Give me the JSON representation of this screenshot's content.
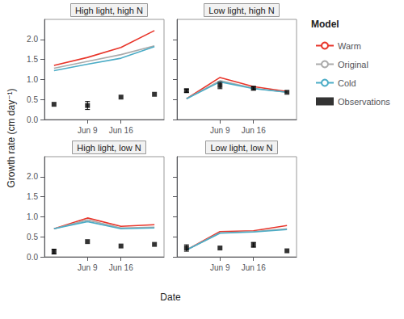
{
  "chart_data": [
    {
      "type": "line",
      "title": "High light, high N",
      "xlabel": "Date",
      "ylabel": "Growth rate (cm day⁻¹)",
      "legend": "right",
      "annotations": [
        {
          "text": "Model"
        }
      ],
      "x": [
        0,
        7,
        14,
        21
      ],
      "xlim": [
        -2,
        23
      ],
      "xticks": [
        {
          "value": 7,
          "label": "Jun 9"
        },
        {
          "value": 14,
          "label": "Jun 16"
        }
      ],
      "ylim": [
        0.0,
        2.5
      ],
      "yticks": [
        {
          "value": 0.0,
          "label": "0.0"
        },
        {
          "value": 0.5,
          "label": "0.5"
        },
        {
          "value": 1.0,
          "label": "1.0"
        },
        {
          "value": 1.5,
          "label": "1.5"
        },
        {
          "value": 2.0,
          "label": "2.0"
        }
      ],
      "grid": false,
      "series": [
        {
          "name": "Warm",
          "color": "#E8352A",
          "values": [
            1.35,
            1.55,
            1.8,
            2.22
          ]
        },
        {
          "name": "Original",
          "color": "#AAAAAA",
          "values": [
            1.28,
            1.45,
            1.62,
            1.84
          ]
        },
        {
          "name": "Cold",
          "color": "#4BACC6",
          "values": [
            1.22,
            1.38,
            1.53,
            1.82
          ]
        },
        {
          "name": "Observations",
          "type": "scatter",
          "color": "#000000",
          "marker": "square",
          "values": [
            0.38,
            0.35,
            0.56,
            0.63
          ],
          "error_lo": [
            0.0,
            0.1,
            0.0,
            0.0
          ],
          "error_hi": [
            0.0,
            0.1,
            0.0,
            0.0
          ]
        }
      ]
    },
    {
      "type": "line",
      "title": "Low light, high N",
      "x": [
        0,
        7,
        14,
        21
      ],
      "xlim": [
        -2,
        23
      ],
      "xticks": [
        {
          "value": 7,
          "label": "Jun 9"
        },
        {
          "value": 14,
          "label": "Jun 16"
        }
      ],
      "ylim": [
        0.0,
        2.5
      ],
      "yticks": [
        {
          "value": 0.0,
          "label": "0.0"
        },
        {
          "value": 0.5,
          "label": "0.5"
        },
        {
          "value": 1.0,
          "label": "1.0"
        },
        {
          "value": 1.5,
          "label": "1.5"
        },
        {
          "value": 2.0,
          "label": "2.0"
        }
      ],
      "grid": false,
      "tick_labels": "x",
      "series": [
        {
          "name": "Warm",
          "color": "#E8352A",
          "values": [
            0.52,
            1.05,
            0.82,
            0.7
          ]
        },
        {
          "name": "Original",
          "color": "#AAAAAA",
          "values": [
            0.52,
            0.97,
            0.78,
            0.68
          ]
        },
        {
          "name": "Cold",
          "color": "#4BACC6",
          "values": [
            0.52,
            0.94,
            0.77,
            0.68
          ]
        },
        {
          "name": "Observations",
          "type": "scatter",
          "color": "#000000",
          "marker": "square",
          "values": [
            0.72,
            0.85,
            0.78,
            0.68
          ],
          "error_lo": [
            0.04,
            0.08,
            0.04,
            0.0
          ],
          "error_hi": [
            0.04,
            0.08,
            0.04,
            0.0
          ]
        }
      ]
    },
    {
      "type": "line",
      "title": "High light, low N",
      "x": [
        0,
        7,
        14,
        21
      ],
      "xlim": [
        -2,
        23
      ],
      "xticks": [
        {
          "value": 7,
          "label": "Jun 9"
        },
        {
          "value": 14,
          "label": "Jun 16"
        }
      ],
      "ylim": [
        0.0,
        2.5
      ],
      "yticks": [
        {
          "value": 0.0,
          "label": "0.0"
        },
        {
          "value": 0.5,
          "label": "0.5"
        },
        {
          "value": 1.0,
          "label": "1.0"
        },
        {
          "value": 1.5,
          "label": "1.5"
        },
        {
          "value": 2.0,
          "label": "2.0"
        }
      ],
      "grid": false,
      "series": [
        {
          "name": "Warm",
          "color": "#E8352A",
          "values": [
            0.7,
            0.97,
            0.76,
            0.8
          ]
        },
        {
          "name": "Original",
          "color": "#AAAAAA",
          "values": [
            0.7,
            0.92,
            0.72,
            0.74
          ]
        },
        {
          "name": "Cold",
          "color": "#4BACC6",
          "values": [
            0.7,
            0.88,
            0.7,
            0.72
          ]
        },
        {
          "name": "Observations",
          "type": "scatter",
          "color": "#000000",
          "marker": "square",
          "values": [
            0.13,
            0.38,
            0.27,
            0.31
          ],
          "error_lo": [
            0.06,
            0.0,
            0.0,
            0.0
          ],
          "error_hi": [
            0.06,
            0.0,
            0.0,
            0.0
          ]
        }
      ]
    },
    {
      "type": "line",
      "title": "Low light, low N",
      "x": [
        0,
        7,
        14,
        21
      ],
      "xlim": [
        -2,
        23
      ],
      "xticks": [
        {
          "value": 7,
          "label": "Jun 9"
        },
        {
          "value": 14,
          "label": "Jun 16"
        }
      ],
      "ylim": [
        0.0,
        2.5
      ],
      "yticks": [
        {
          "value": 0.0,
          "label": "0.0"
        },
        {
          "value": 0.5,
          "label": "0.5"
        },
        {
          "value": 1.0,
          "label": "1.0"
        },
        {
          "value": 1.5,
          "label": "1.5"
        },
        {
          "value": 2.0,
          "label": "2.0"
        }
      ],
      "grid": false,
      "tick_labels": "x",
      "series": [
        {
          "name": "Warm",
          "color": "#E8352A",
          "values": [
            0.17,
            0.63,
            0.65,
            0.78
          ]
        },
        {
          "name": "Original",
          "color": "#AAAAAA",
          "values": [
            0.17,
            0.6,
            0.63,
            0.7
          ]
        },
        {
          "name": "Cold",
          "color": "#4BACC6",
          "values": [
            0.17,
            0.59,
            0.62,
            0.68
          ]
        },
        {
          "name": "Observations",
          "type": "scatter",
          "color": "#000000",
          "marker": "square",
          "values": [
            0.22,
            0.22,
            0.3,
            0.15
          ],
          "error_lo": [
            0.08,
            0.0,
            0.06,
            0.0
          ],
          "error_hi": [
            0.08,
            0.0,
            0.06,
            0.0
          ]
        }
      ]
    }
  ]
}
